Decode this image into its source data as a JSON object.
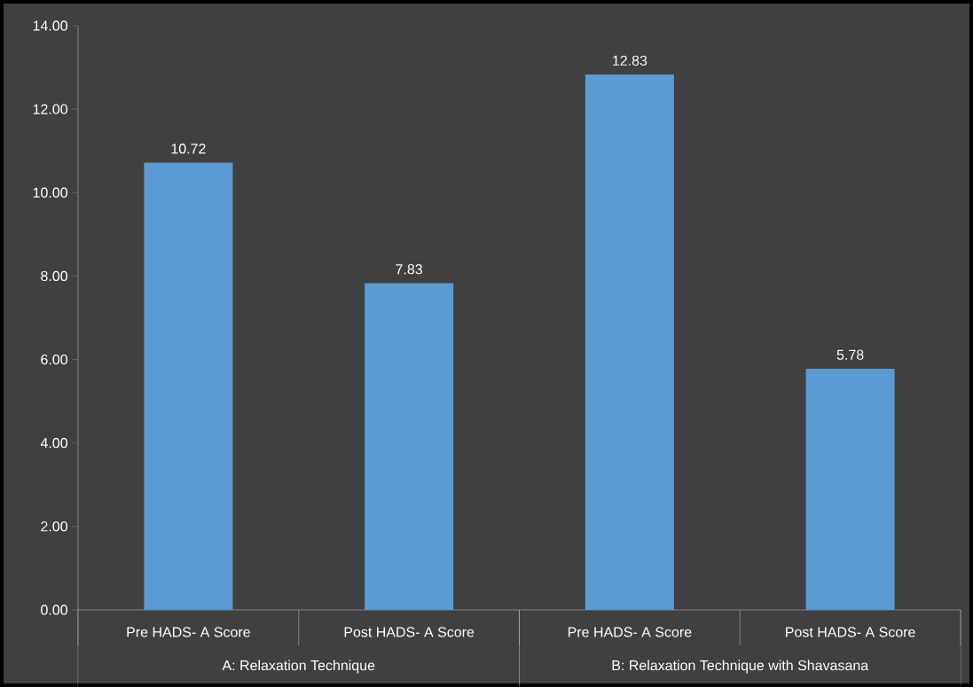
{
  "chart_data": {
    "type": "bar",
    "categories": [
      "Pre HADS- A Score",
      "Post HADS- A Score",
      "Pre HADS- A Score",
      "Post HADS- A Score"
    ],
    "values": [
      10.72,
      7.83,
      12.83,
      5.78
    ],
    "color": "#5b9bd5",
    "ylim": [
      0,
      14
    ],
    "yticks": [
      {
        "value": 0,
        "label": "0.00"
      },
      {
        "value": 2,
        "label": "2.00"
      },
      {
        "value": 4,
        "label": "4.00"
      },
      {
        "value": 6,
        "label": "6.00"
      },
      {
        "value": 8,
        "label": "8.00"
      },
      {
        "value": 10,
        "label": "10.00"
      },
      {
        "value": 12,
        "label": "12.00"
      },
      {
        "value": 14,
        "label": "14.00"
      }
    ],
    "data_labels": true,
    "grid": false,
    "annotations": [
      "A: Relaxation Technique",
      "B:  Relaxation Technique with Shavasana"
    ]
  }
}
